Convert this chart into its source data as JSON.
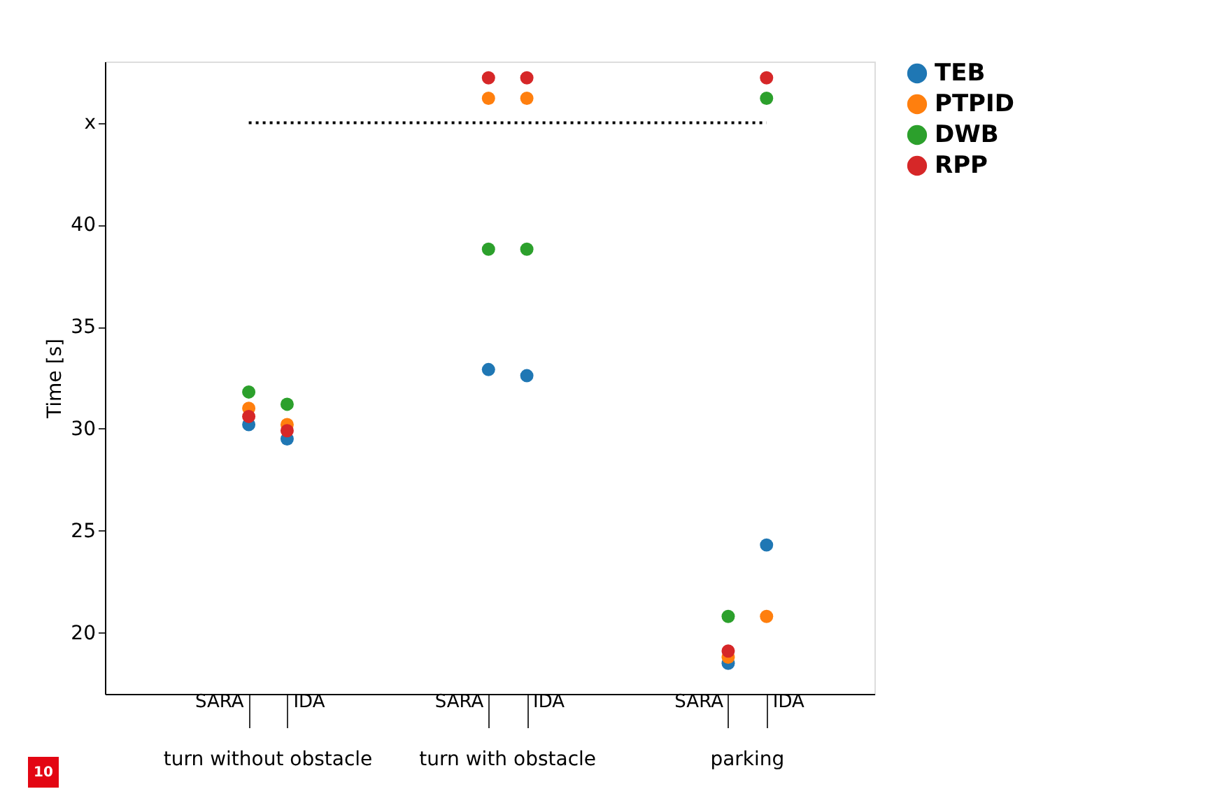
{
  "chart_data": {
    "type": "scatter",
    "ylabel": "Time [s]",
    "categories": [
      "SARA",
      "IDA",
      "SARA",
      "IDA",
      "SARA",
      "IDA"
    ],
    "ylim": [
      17,
      48
    ],
    "yticks": [
      20,
      25,
      30,
      35,
      40,
      {
        "value": 45,
        "label": "x"
      }
    ],
    "series": [
      {
        "name": "TEB",
        "color": "#1f77b4",
        "values": [
          30.2,
          29.5,
          32.9,
          32.6,
          18.5,
          24.3
        ]
      },
      {
        "name": "PTPID",
        "color": "#ff7f0e",
        "values": [
          31.0,
          30.2,
          46.2,
          46.2,
          18.8,
          20.8
        ]
      },
      {
        "name": "DWB",
        "color": "#2ca02c",
        "values": [
          31.8,
          31.2,
          38.8,
          38.8,
          20.8,
          46.2
        ]
      },
      {
        "name": "RPP",
        "color": "#d62728",
        "values": [
          30.6,
          29.9,
          47.2,
          47.2,
          19.1,
          47.2
        ]
      }
    ],
    "ref_lines": [
      {
        "axis": "y",
        "value": 45,
        "line_style": "dotted",
        "color": "#000000"
      }
    ],
    "annotations": [
      "turn without obstacle",
      "turn with obstacle",
      "parking",
      "10"
    ],
    "marker": "circle",
    "grid": false,
    "legend": "top right"
  }
}
